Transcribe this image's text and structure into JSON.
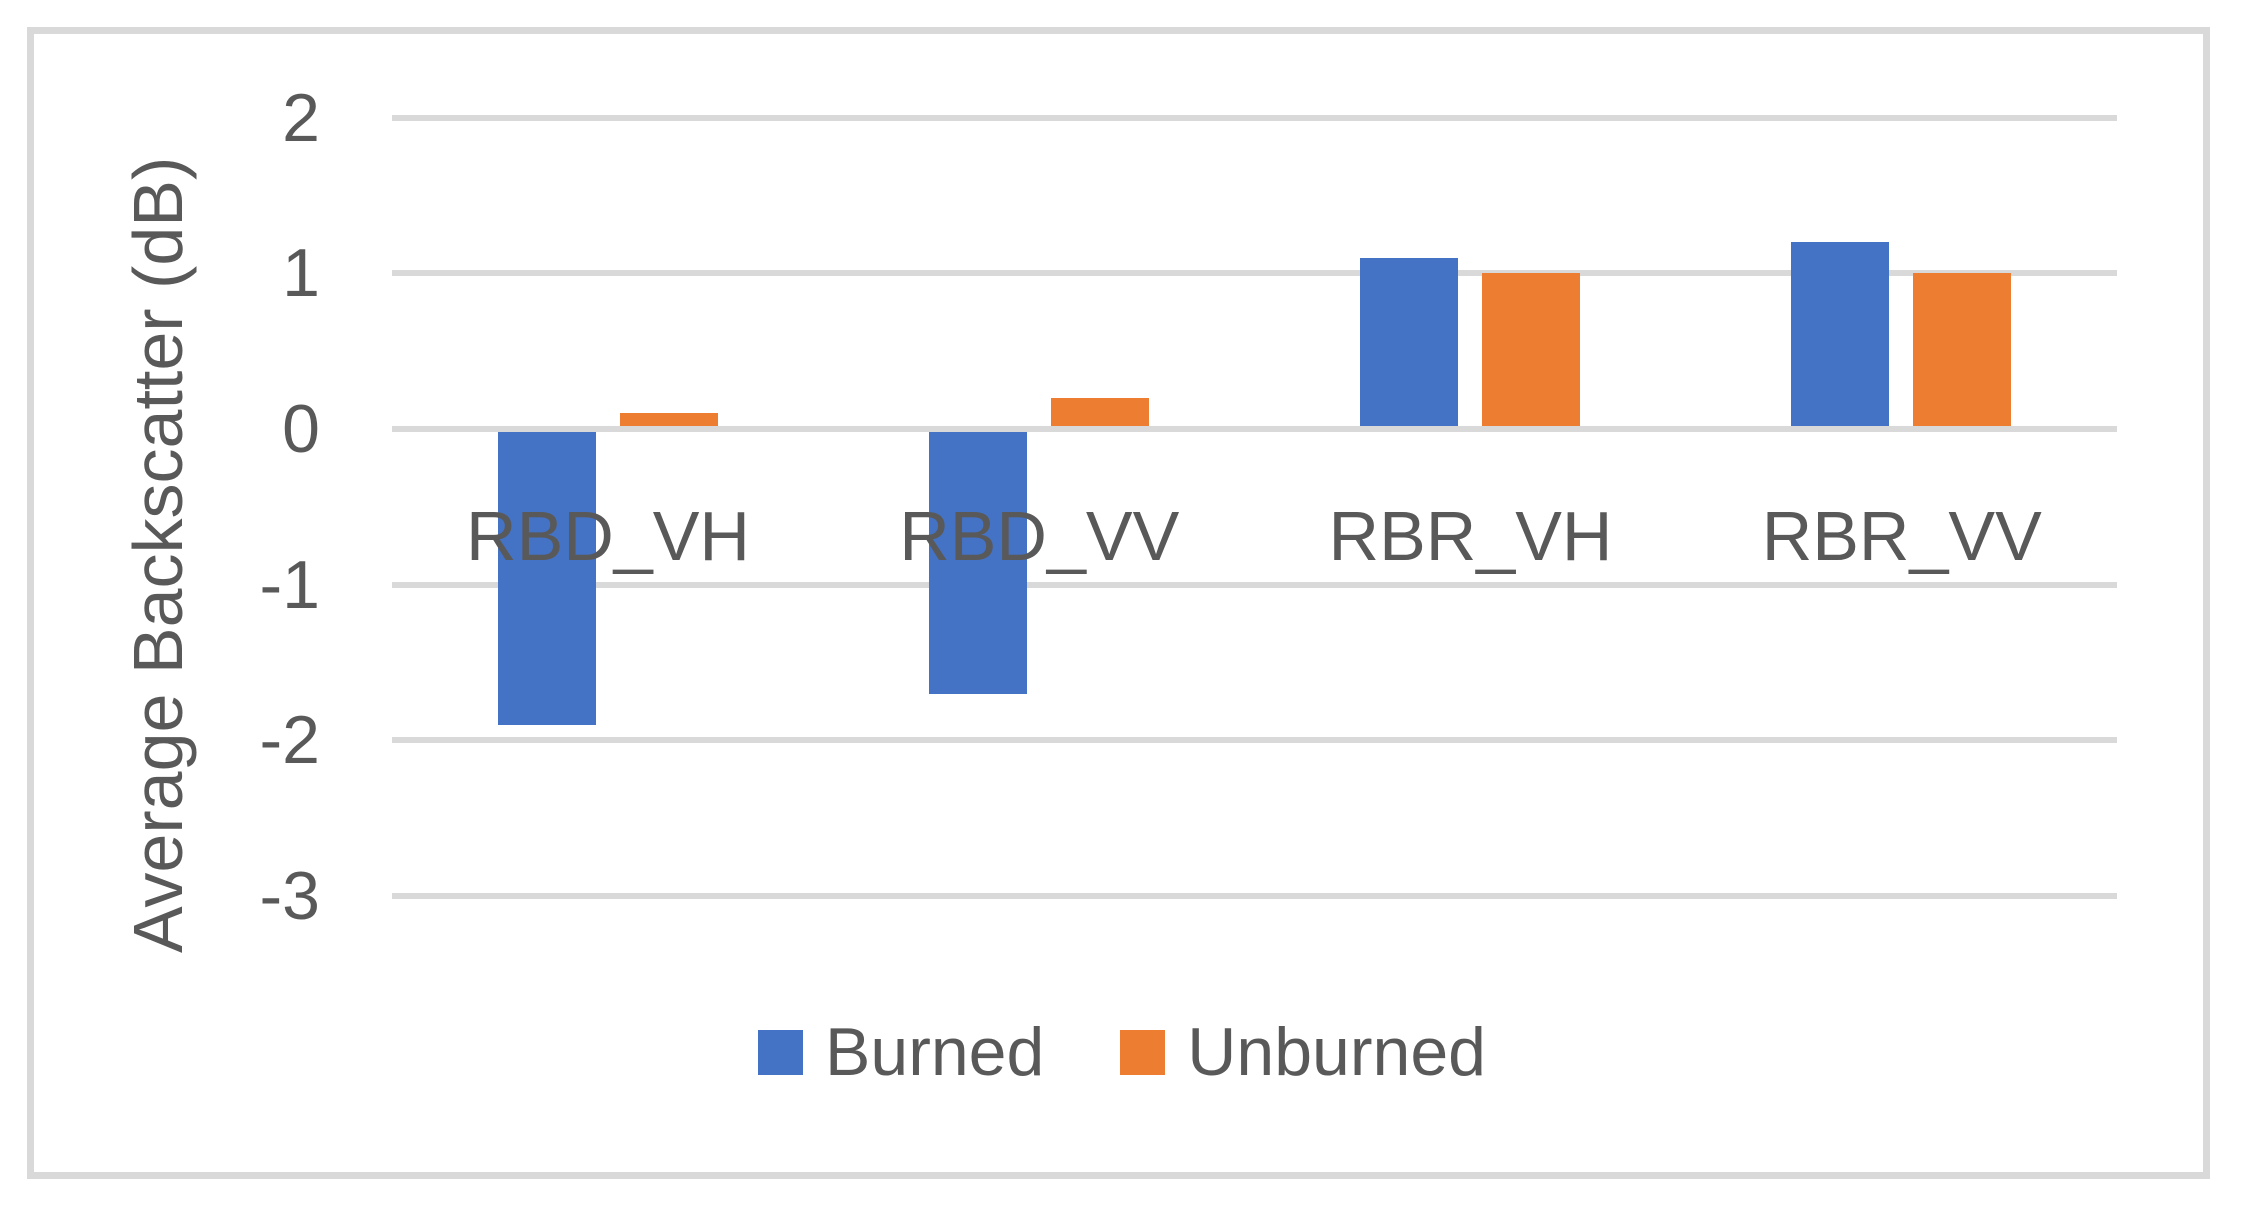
{
  "figure": {
    "background_color": "#FFFFFF",
    "border_color": "#D9D9D9",
    "text_color": "#595959",
    "gridline_color": "#D9D9D9"
  },
  "chart_data": {
    "type": "bar",
    "title": "",
    "xlabel": "",
    "ylabel": "Average Backscatter (dB)",
    "categories": [
      "RBD_VH",
      "RBD_VV",
      "RBR_VH",
      "RBR_VV"
    ],
    "series": [
      {
        "name": "Burned",
        "color": "#4472C4",
        "values": [
          -1.9,
          -1.7,
          1.1,
          1.2
        ]
      },
      {
        "name": "Unburned",
        "color": "#ED7D31",
        "values": [
          0.1,
          0.2,
          1.0,
          1.0
        ]
      }
    ],
    "yticks": [
      "2",
      "1",
      "0",
      "-1",
      "-2",
      "-3"
    ],
    "ytick_values": [
      2,
      1,
      0,
      -1,
      -2,
      -3
    ],
    "ylim": [
      -3,
      2
    ],
    "grid": "horizontal",
    "legend_position": "bottom",
    "legend_labels": [
      "Burned",
      "Unburned"
    ]
  }
}
